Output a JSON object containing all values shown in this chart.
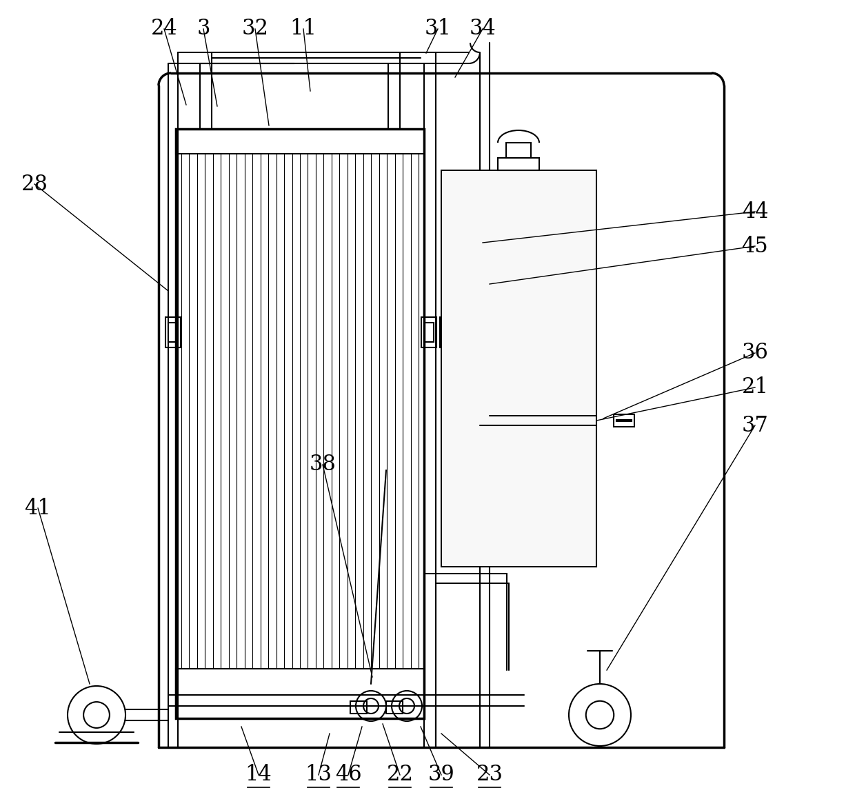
{
  "bg_color": "#ffffff",
  "line_color": "#000000",
  "line_width": 1.5,
  "thick_line": 2.5,
  "fig_width": 12.4,
  "fig_height": 11.72
}
